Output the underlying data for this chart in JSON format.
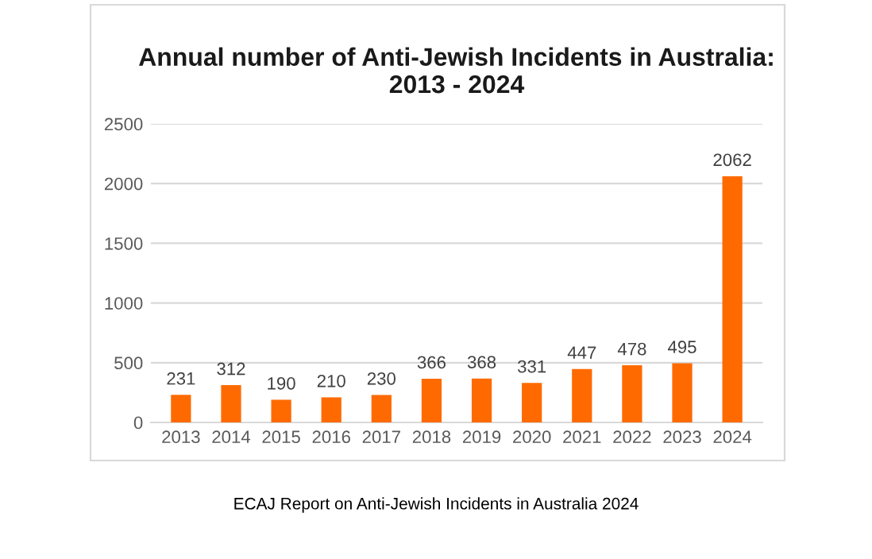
{
  "chart_data": {
    "type": "bar",
    "title": "Annual number of Anti-Jewish Incidents in Australia:\n2013 - 2024",
    "categories": [
      "2013",
      "2014",
      "2015",
      "2016",
      "2017",
      "2018",
      "2019",
      "2020",
      "2021",
      "2022",
      "2023",
      "2024"
    ],
    "values": [
      231,
      312,
      190,
      210,
      230,
      366,
      368,
      331,
      447,
      478,
      495,
      2062
    ],
    "color": "#ff6a00",
    "ylim": [
      0,
      2500
    ],
    "yticks": [
      0,
      500,
      1000,
      1500,
      2000,
      2500
    ],
    "grid": "y",
    "data_labels": true,
    "annotations": [
      "ECAJ Report on Anti-Jewish Incidents in Australia 2024"
    ]
  }
}
